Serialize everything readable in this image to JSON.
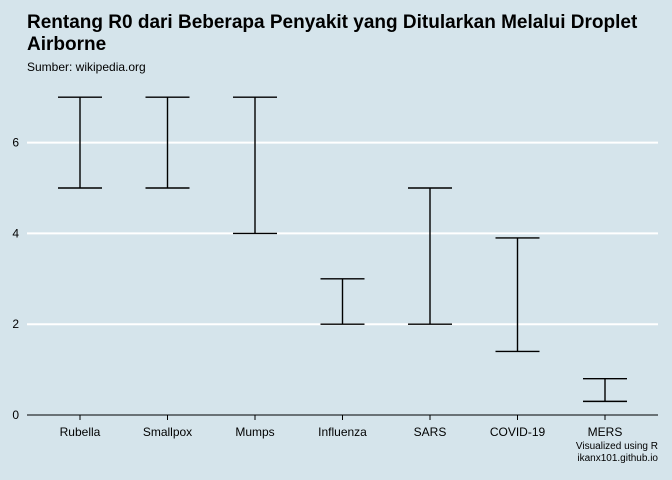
{
  "chart_data": {
    "type": "errorbar",
    "title": "Rentang R0 dari Beberapa Penyakit yang Ditularkan Melalui Droplet Airborne",
    "subtitle": "Sumber: wikipedia.org",
    "caption_line1": "Visualized using R",
    "caption_line2": "ikanx101.github.io",
    "xlabel": "",
    "ylabel": "",
    "ylim": [
      0,
      7
    ],
    "yticks": [
      0,
      2,
      4,
      6
    ],
    "grid": "horizontal",
    "categories": [
      "Rubella",
      "Smallpox",
      "Mumps",
      "Influenza",
      "SARS",
      "COVID-19",
      "MERS"
    ],
    "ranges": [
      {
        "low": 5,
        "high": 7
      },
      {
        "low": 5,
        "high": 7
      },
      {
        "low": 4,
        "high": 7
      },
      {
        "low": 2,
        "high": 3
      },
      {
        "low": 2,
        "high": 5
      },
      {
        "low": 1.4,
        "high": 3.9
      },
      {
        "low": 0.3,
        "high": 0.8
      }
    ],
    "colors": {
      "background": "#d5e4eb",
      "grid": "#ffffff",
      "bar": "#000000"
    }
  }
}
